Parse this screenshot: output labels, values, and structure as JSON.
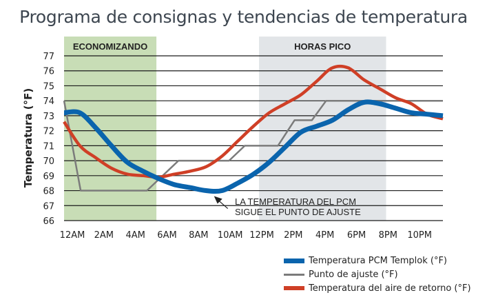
{
  "chart_data": {
    "type": "line",
    "title": "Programa de consignas y tendencias de temperatura",
    "xlabel": "",
    "ylabel": "Temperatura (°F)",
    "ylim": [
      66,
      77
    ],
    "xlim": [
      0,
      24
    ],
    "yticks": [
      "77",
      "76",
      "75",
      "74",
      "73",
      "72",
      "71",
      "70",
      "69",
      "68",
      "67",
      "66"
    ],
    "xticks": [
      {
        "hour": 0,
        "label": "12AM"
      },
      {
        "hour": 2,
        "label": "2AM"
      },
      {
        "hour": 4,
        "label": "4AM"
      },
      {
        "hour": 6,
        "label": "6AM"
      },
      {
        "hour": 8,
        "label": "8AM"
      },
      {
        "hour": 10,
        "label": "10AM"
      },
      {
        "hour": 12,
        "label": "12PM"
      },
      {
        "hour": 14,
        "label": "2PM"
      },
      {
        "hour": 16,
        "label": "4PM"
      },
      {
        "hour": 18,
        "label": "6PM"
      },
      {
        "hour": 20,
        "label": "8PM"
      },
      {
        "hour": 22,
        "label": "10PM"
      }
    ],
    "grid": "horizontal",
    "bands": [
      {
        "label": "ECONOMIZANDO",
        "from_hour": 0,
        "to_hour": 5.85,
        "color": "#c8ddb6"
      },
      {
        "label": "HORAS PICO",
        "from_hour": 12.35,
        "to_hour": 20.4,
        "color": "#e2e5e8"
      }
    ],
    "annotation": {
      "lines": [
        "LA TEMPERATURA DEL PCM",
        "SIGUE EL PUNTO DE AJUSTE"
      ],
      "points_to_hour": 9.5,
      "points_to_value": 68.0
    },
    "series": [
      {
        "name": "Temperatura PCM Templok (°F)",
        "color": "#0a64ad",
        "x": [
          0,
          1,
          2,
          3,
          4,
          5,
          6,
          7,
          8,
          9,
          10,
          11,
          12,
          13,
          14,
          15,
          16,
          17,
          18,
          19,
          20,
          21,
          22,
          23,
          24
        ],
        "values": [
          73.2,
          73.2,
          72.2,
          71.0,
          69.9,
          69.3,
          68.8,
          68.4,
          68.2,
          68.0,
          68.0,
          68.5,
          69.1,
          69.9,
          70.9,
          71.9,
          72.3,
          72.7,
          73.4,
          73.9,
          73.8,
          73.5,
          73.2,
          73.1,
          73.0
        ]
      },
      {
        "name": "Punto de ajuste (°F)",
        "color": "#7b7b7b",
        "x": [
          0,
          1.05,
          5.25,
          7.25,
          10.45,
          11.45,
          13.55,
          14.6,
          15.7,
          16.6,
          24
        ],
        "values": [
          74,
          68,
          68,
          70,
          70,
          71,
          71,
          72.7,
          72.7,
          74,
          74
        ]
      },
      {
        "name": "Temperatura del aire de retorno (°F)",
        "color": "#cf3f26",
        "x": [
          0,
          1,
          2,
          3,
          4,
          5,
          6,
          7,
          8,
          9,
          10,
          11,
          12,
          13,
          14,
          15,
          16,
          17,
          18,
          19,
          20,
          21,
          22,
          23,
          24
        ],
        "values": [
          72.6,
          71.0,
          70.2,
          69.5,
          69.1,
          69.0,
          68.9,
          69.1,
          69.3,
          69.6,
          70.3,
          71.3,
          72.3,
          73.2,
          73.8,
          74.4,
          75.3,
          76.2,
          76.2,
          75.4,
          74.8,
          74.2,
          73.8,
          73.1,
          72.8
        ]
      }
    ],
    "legend_position": "bottom-right"
  }
}
